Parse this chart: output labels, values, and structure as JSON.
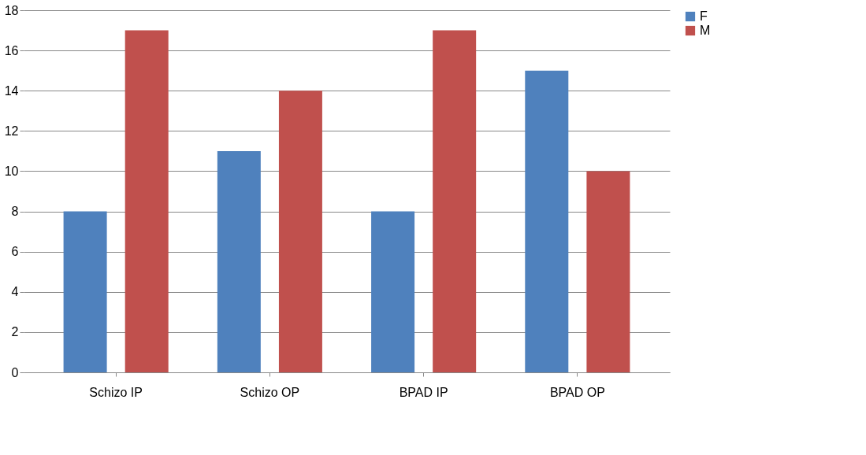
{
  "chart_data": {
    "type": "bar",
    "categories": [
      "Schizo IP",
      "Schizo OP",
      "BPAD IP",
      "BPAD OP"
    ],
    "series": [
      {
        "name": "F",
        "color": "#4f81bd",
        "values": [
          8,
          11,
          8,
          15
        ]
      },
      {
        "name": "M",
        "color": "#c0504d",
        "values": [
          17,
          14,
          17,
          10
        ]
      }
    ],
    "ylim": [
      0,
      18
    ],
    "yticks": [
      0,
      2,
      4,
      6,
      8,
      10,
      12,
      14,
      16,
      18
    ],
    "grid": "y",
    "legend": "right"
  }
}
